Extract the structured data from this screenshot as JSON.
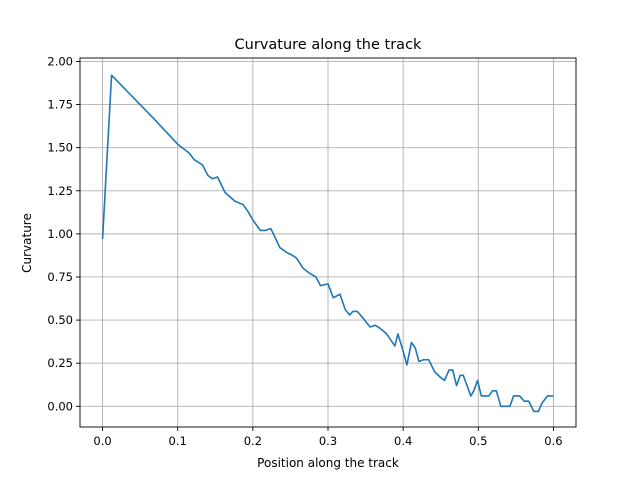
{
  "chart_data": {
    "type": "line",
    "title": "Curvature along the track",
    "xlabel": "Position along the track",
    "ylabel": "Curvature",
    "xlim": [
      -0.03,
      0.63
    ],
    "ylim": [
      -0.12,
      2.02
    ],
    "xticks": [
      0.0,
      0.1,
      0.2,
      0.3,
      0.4,
      0.5,
      0.6
    ],
    "xtick_labels": [
      "0.0",
      "0.1",
      "0.2",
      "0.3",
      "0.4",
      "0.5",
      "0.6"
    ],
    "yticks": [
      0.0,
      0.25,
      0.5,
      0.75,
      1.0,
      1.25,
      1.5,
      1.75,
      2.0
    ],
    "ytick_labels": [
      "0.00",
      "0.25",
      "0.50",
      "0.75",
      "1.00",
      "1.25",
      "1.50",
      "1.75",
      "2.00"
    ],
    "grid": true,
    "line_color": "#1f77b4",
    "series": [
      {
        "x": [
          0.0,
          0.012,
          0.07,
          0.1,
          0.115,
          0.122,
          0.133,
          0.14,
          0.146,
          0.153,
          0.163,
          0.176,
          0.187,
          0.195,
          0.2,
          0.21,
          0.216,
          0.224,
          0.236,
          0.246,
          0.251,
          0.258,
          0.267,
          0.276,
          0.284,
          0.29,
          0.3,
          0.307,
          0.316,
          0.323,
          0.329,
          0.333,
          0.339,
          0.345,
          0.356,
          0.363,
          0.37,
          0.378,
          0.389,
          0.393,
          0.4,
          0.405,
          0.411,
          0.416,
          0.421,
          0.427,
          0.434,
          0.442,
          0.449,
          0.455,
          0.461,
          0.466,
          0.471,
          0.476,
          0.48,
          0.49,
          0.494,
          0.499,
          0.504,
          0.514,
          0.519,
          0.524,
          0.53,
          0.536,
          0.542,
          0.547,
          0.555,
          0.561,
          0.567,
          0.574,
          0.58,
          0.585,
          0.592,
          0.6
        ],
        "y": [
          0.97,
          1.92,
          1.66,
          1.52,
          1.47,
          1.43,
          1.4,
          1.34,
          1.32,
          1.33,
          1.24,
          1.19,
          1.17,
          1.12,
          1.08,
          1.02,
          1.02,
          1.03,
          0.92,
          0.89,
          0.88,
          0.86,
          0.8,
          0.77,
          0.75,
          0.7,
          0.71,
          0.63,
          0.65,
          0.56,
          0.53,
          0.55,
          0.55,
          0.52,
          0.46,
          0.47,
          0.45,
          0.42,
          0.35,
          0.42,
          0.32,
          0.24,
          0.37,
          0.34,
          0.26,
          0.27,
          0.27,
          0.2,
          0.17,
          0.15,
          0.21,
          0.21,
          0.12,
          0.18,
          0.18,
          0.06,
          0.09,
          0.15,
          0.06,
          0.06,
          0.09,
          0.09,
          0.0,
          0.0,
          0.0,
          0.06,
          0.06,
          0.03,
          0.03,
          -0.03,
          -0.03,
          0.02,
          0.06,
          0.06
        ]
      }
    ]
  }
}
